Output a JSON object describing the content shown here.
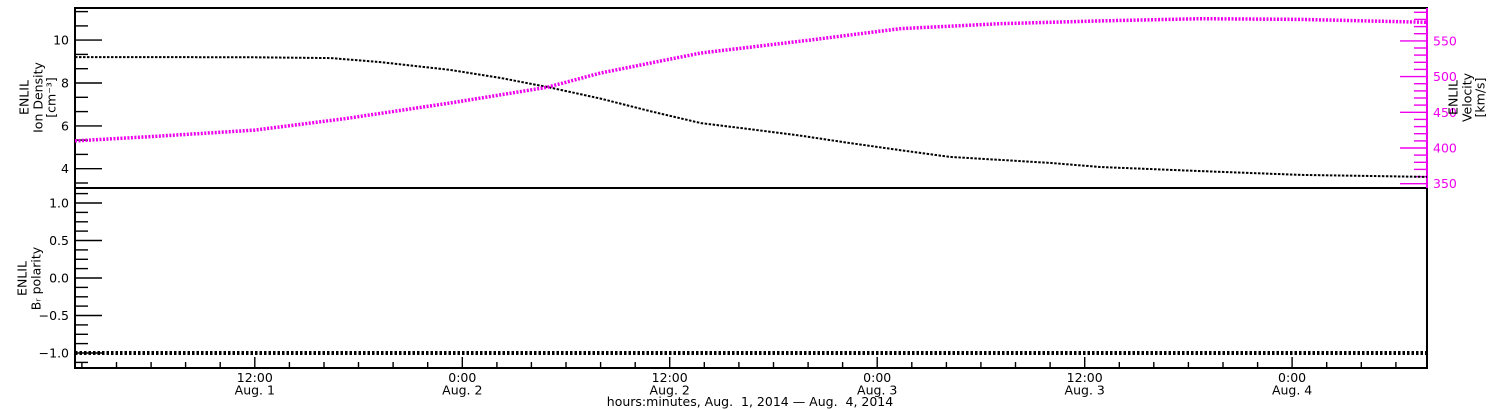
{
  "figure": {
    "background": "#ffffff",
    "frame_color": "#000000",
    "accent_color": "#ee00ee"
  },
  "chart_data": [
    {
      "type": "line",
      "panel": "top",
      "x_range_hours_from_aug1": [
        1.6,
        79.8
      ],
      "left_axis": {
        "label_lines": [
          "ENLIL",
          "Ion Density",
          "[cm⁻³]"
        ],
        "color": "#000000",
        "range": [
          3.1,
          11.5
        ],
        "major_ticks": [
          4,
          6,
          8,
          10
        ],
        "tick_labels": [
          "4",
          "6",
          "8",
          "10"
        ],
        "minor_step": 0.66667
      },
      "right_axis": {
        "label_lines": [
          "ENLIL",
          "Velocity",
          "[km/s]"
        ],
        "color": "#ee00ee",
        "title_color": "#000000",
        "range": [
          344,
          596
        ],
        "major_ticks": [
          350,
          400,
          450,
          500,
          550
        ],
        "tick_labels": [
          "350",
          "400",
          "450",
          "500",
          "550"
        ],
        "minor_step": 10
      },
      "series": [
        {
          "name": "ion-density",
          "axis": "left",
          "color": "#000000",
          "width": 2,
          "dash": "2.5 1.5",
          "points": [
            [
              1.6,
              9.21
            ],
            [
              6,
              9.21
            ],
            [
              12,
              9.2
            ],
            [
              16.4,
              9.16
            ],
            [
              19.2,
              8.98
            ],
            [
              23.3,
              8.61
            ],
            [
              26.2,
              8.24
            ],
            [
              28.9,
              7.82
            ],
            [
              32,
              7.27
            ],
            [
              34.9,
              6.68
            ],
            [
              37.8,
              6.13
            ],
            [
              40.6,
              5.85
            ],
            [
              43.5,
              5.55
            ],
            [
              46.4,
              5.2
            ],
            [
              49.3,
              4.87
            ],
            [
              52.2,
              4.55
            ],
            [
              55.1,
              4.41
            ],
            [
              58,
              4.27
            ],
            [
              60.9,
              4.08
            ],
            [
              66.7,
              3.89
            ],
            [
              72.5,
              3.71
            ],
            [
              79.8,
              3.62
            ]
          ]
        },
        {
          "name": "velocity",
          "axis": "right",
          "color": "#ee00ee",
          "width": 3.5,
          "dash": "2 1.5",
          "points": [
            [
              1.6,
              410
            ],
            [
              6,
              416
            ],
            [
              12,
              425
            ],
            [
              17.2,
              441
            ],
            [
              23.3,
              463
            ],
            [
              28.9,
              485
            ],
            [
              32,
              505
            ],
            [
              34.9,
              519
            ],
            [
              37.8,
              533
            ],
            [
              44.1,
              551
            ],
            [
              49.3,
              567
            ],
            [
              55.1,
              574
            ],
            [
              60.9,
              578
            ],
            [
              66.7,
              581
            ],
            [
              72.5,
              580
            ],
            [
              79.8,
              576
            ]
          ]
        }
      ]
    },
    {
      "type": "line",
      "panel": "bottom",
      "x_range_hours_from_aug1": [
        1.6,
        79.8
      ],
      "left_axis": {
        "label_lines": [
          "ENLIL",
          "Bᵣ polarity"
        ],
        "color": "#000000",
        "range": [
          -1.2,
          1.2
        ],
        "major_ticks": [
          -1.0,
          -0.5,
          0.0,
          0.5,
          1.0
        ],
        "tick_labels": [
          "−1.0",
          "−0.5",
          "0.0",
          "0.5",
          "1.0"
        ],
        "minor_step": 0.125
      },
      "series": [
        {
          "name": "br-polarity",
          "axis": "left",
          "color": "#000000",
          "width": 4,
          "dash": "2.5 2",
          "points": [
            [
              1.6,
              -1.0
            ],
            [
              79.8,
              -1.0
            ]
          ]
        }
      ],
      "x_axis": {
        "title": "hours:minutes, Aug.  1, 2014 — Aug.  4, 2014",
        "minor_step_hours": 2,
        "major_ticks": [
          {
            "h": 12,
            "time": "12:00",
            "date": "Aug. 1"
          },
          {
            "h": 24,
            "time": "0:00",
            "date": "Aug. 2"
          },
          {
            "h": 36,
            "time": "12:00",
            "date": "Aug. 2"
          },
          {
            "h": 48,
            "time": "0:00",
            "date": "Aug. 3"
          },
          {
            "h": 60,
            "time": "12:00",
            "date": "Aug. 3"
          },
          {
            "h": 72,
            "time": "0:00",
            "date": "Aug. 4"
          }
        ]
      }
    }
  ]
}
